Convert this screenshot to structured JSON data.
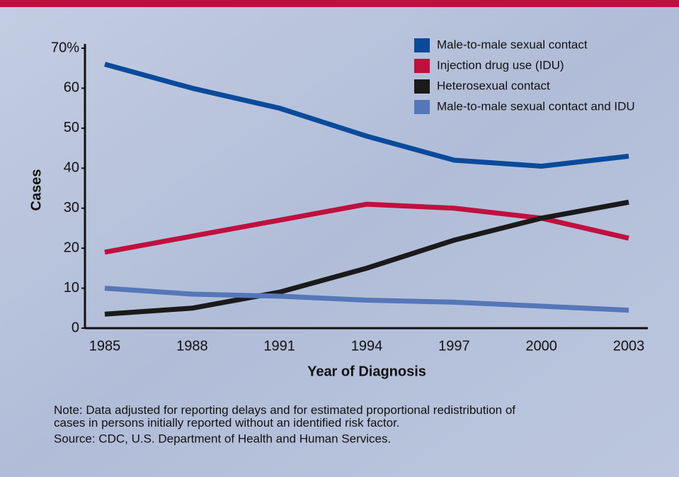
{
  "chart_data": {
    "type": "line",
    "y_label": "Cases",
    "x_label": "Year of Diagnosis",
    "categories": [
      "1985",
      "1988",
      "1991",
      "1994",
      "1997",
      "2000",
      "2003"
    ],
    "series": [
      {
        "name": "Male-to-male sexual contact",
        "color": "#0a4a9c",
        "values": [
          66,
          60,
          55,
          48,
          42,
          40.5,
          43
        ]
      },
      {
        "name": "Injection drug use (IDU)",
        "color": "#c0103f",
        "values": [
          19,
          23,
          27,
          31,
          30,
          27.5,
          22.5
        ]
      },
      {
        "name": "Heterosexual contact",
        "color": "#1a1a1a",
        "values": [
          3.5,
          5,
          9,
          15,
          22,
          27.5,
          31.5
        ]
      },
      {
        "name": "Male-to-male sexual contact and IDU",
        "color": "#5577b8",
        "values": [
          10,
          8.5,
          8,
          7,
          6.5,
          5.5,
          4.5
        ]
      }
    ],
    "ylim": [
      0,
      70
    ],
    "yticks": [
      0,
      10,
      20,
      30,
      40,
      50,
      60,
      {
        "value": 70,
        "label": "70%"
      }
    ],
    "grid": false,
    "legend": "top-right",
    "note": "Note: Data adjusted for reporting delays and for estimated proportional redistribution of cases in persons initially reported without an identified risk factor.",
    "source": "Source: CDC, U.S. Department of Health and Human Services."
  }
}
